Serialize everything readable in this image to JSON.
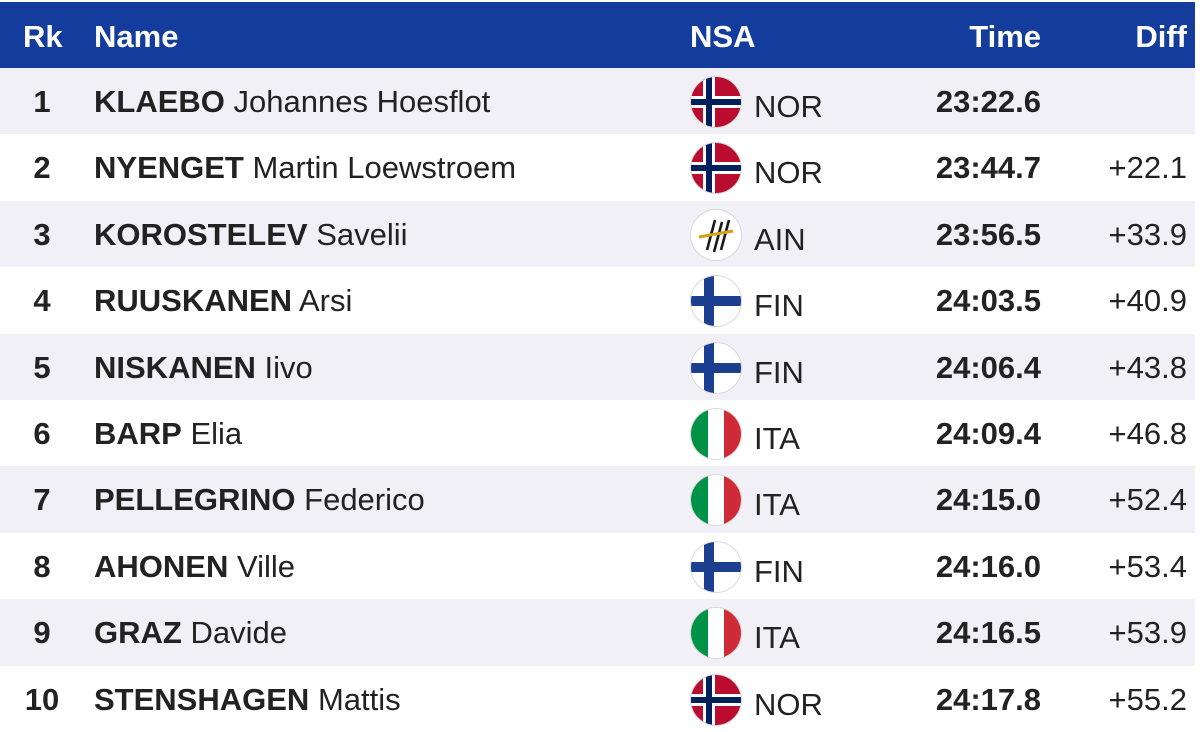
{
  "header": {
    "rank": "Rk",
    "name": "Name",
    "nsa": "NSA",
    "time": "Time",
    "diff": "Diff"
  },
  "colors": {
    "header_bg": "#143c9c",
    "row_alt_bg": "#f0f0f6"
  },
  "rows": [
    {
      "rank": "1",
      "lastname": "KLAEBO",
      "firstname": "Johannes Hoesflot",
      "nsa": "NOR",
      "flag": "norway-flag-icon",
      "time": "23:22.6",
      "diff": ""
    },
    {
      "rank": "2",
      "lastname": "NYENGET",
      "firstname": "Martin Loewstroem",
      "nsa": "NOR",
      "flag": "norway-flag-icon",
      "time": "23:44.7",
      "diff": "+22.1"
    },
    {
      "rank": "3",
      "lastname": "KOROSTELEV",
      "firstname": "Savelii",
      "nsa": "AIN",
      "flag": "fis-logo-icon",
      "time": "23:56.5",
      "diff": "+33.9"
    },
    {
      "rank": "4",
      "lastname": "RUUSKANEN",
      "firstname": "Arsi",
      "nsa": "FIN",
      "flag": "finland-flag-icon",
      "time": "24:03.5",
      "diff": "+40.9"
    },
    {
      "rank": "5",
      "lastname": "NISKANEN",
      "firstname": "Iivo",
      "nsa": "FIN",
      "flag": "finland-flag-icon",
      "time": "24:06.4",
      "diff": "+43.8"
    },
    {
      "rank": "6",
      "lastname": "BARP",
      "firstname": "Elia",
      "nsa": "ITA",
      "flag": "italy-flag-icon",
      "time": "24:09.4",
      "diff": "+46.8"
    },
    {
      "rank": "7",
      "lastname": "PELLEGRINO",
      "firstname": "Federico",
      "nsa": "ITA",
      "flag": "italy-flag-icon",
      "time": "24:15.0",
      "diff": "+52.4"
    },
    {
      "rank": "8",
      "lastname": "AHONEN",
      "firstname": "Ville",
      "nsa": "FIN",
      "flag": "finland-flag-icon",
      "time": "24:16.0",
      "diff": "+53.4"
    },
    {
      "rank": "9",
      "lastname": "GRAZ",
      "firstname": "Davide",
      "nsa": "ITA",
      "flag": "italy-flag-icon",
      "time": "24:16.5",
      "diff": "+53.9"
    },
    {
      "rank": "10",
      "lastname": "STENSHAGEN",
      "firstname": "Mattis",
      "nsa": "NOR",
      "flag": "norway-flag-icon",
      "time": "24:17.8",
      "diff": "+55.2"
    }
  ]
}
